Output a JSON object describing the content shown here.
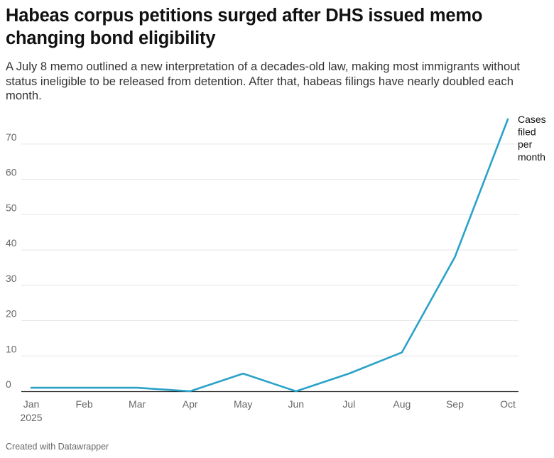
{
  "title": "Habeas corpus petitions surged after DHS issued memo changing bond eligibility",
  "subtitle": "A July 8 memo outlined a new interpretation of a decades-old law, making most immigrants without status ineligible to be released from detention. After that, habeas filings have nearly doubled each month.",
  "footer": "Created with Datawrapper",
  "colors": {
    "line": "#2ba2c8",
    "grid": "#e6e6e6",
    "axis": "#222222",
    "tick": "#666666"
  },
  "chart_data": {
    "type": "line",
    "categories": [
      "Jan",
      "Feb",
      "Mar",
      "Apr",
      "May",
      "Jun",
      "Jul",
      "Aug",
      "Sep",
      "Oct"
    ],
    "year_label": "2025",
    "series": [
      {
        "name": "Cases filed per month",
        "label_lines": [
          "Cases",
          "filed",
          "per",
          "month"
        ],
        "values": [
          1,
          1,
          1,
          0,
          5,
          0,
          5,
          11,
          38,
          77
        ]
      }
    ],
    "yticks": [
      0,
      10,
      20,
      30,
      40,
      50,
      60,
      70
    ],
    "ylim": [
      0,
      77
    ],
    "grid": true
  }
}
